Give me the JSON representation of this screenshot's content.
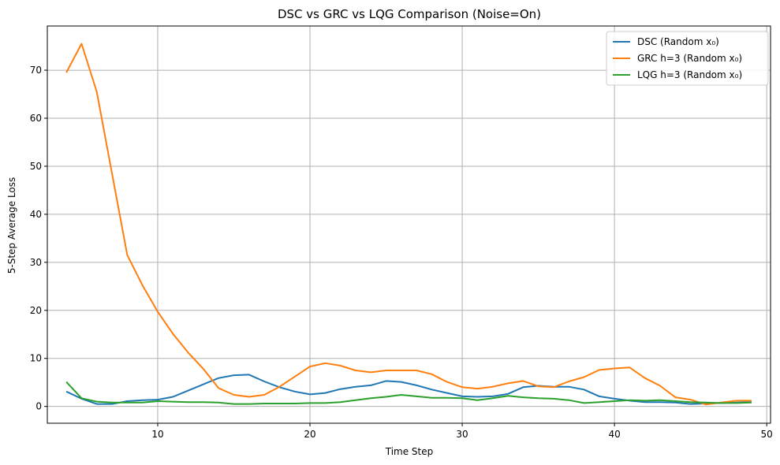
{
  "chart_data": {
    "type": "line",
    "title": "DSC vs GRC vs LQG Comparison (Noise=On)",
    "xlabel": "Time Step",
    "ylabel": "5-Step Average Loss",
    "xlim": [
      2.75,
      50.25
    ],
    "ylim": [
      -3.5,
      79.2
    ],
    "xticks": [
      10,
      20,
      30,
      40,
      50
    ],
    "yticks": [
      0,
      10,
      20,
      30,
      40,
      50,
      60,
      70
    ],
    "grid": true,
    "legend_position": "top-right",
    "x": [
      4,
      5,
      6,
      7,
      8,
      9,
      10,
      11,
      12,
      13,
      14,
      15,
      16,
      17,
      18,
      19,
      20,
      21,
      22,
      23,
      24,
      25,
      26,
      27,
      28,
      29,
      30,
      31,
      32,
      33,
      34,
      35,
      36,
      37,
      38,
      39,
      40,
      41,
      42,
      43,
      44,
      45,
      46,
      47,
      48,
      49
    ],
    "series": [
      {
        "name": "DSC (Random x₀)",
        "color": "#1f77b4",
        "values": [
          3.1,
          1.6,
          0.5,
          0.5,
          1.1,
          1.3,
          1.4,
          2.0,
          3.3,
          4.6,
          5.9,
          6.5,
          6.6,
          5.2,
          4.0,
          3.1,
          2.5,
          2.8,
          3.6,
          4.1,
          4.4,
          5.3,
          5.1,
          4.4,
          3.5,
          2.8,
          2.1,
          2.0,
          2.1,
          2.6,
          4.0,
          4.3,
          4.1,
          4.1,
          3.5,
          2.1,
          1.6,
          1.2,
          0.9,
          0.9,
          0.8,
          0.5,
          0.6,
          0.7,
          0.8,
          0.9
        ]
      },
      {
        "name": "GRC h=3 (Random x₀)",
        "color": "#ff7f0e",
        "values": [
          69.5,
          75.5,
          65.5,
          48.5,
          31.5,
          25.2,
          19.7,
          15.1,
          11.2,
          7.8,
          3.8,
          2.4,
          2.0,
          2.4,
          4.1,
          6.2,
          8.3,
          9.0,
          8.5,
          7.5,
          7.1,
          7.5,
          7.5,
          7.5,
          6.7,
          5.1,
          4.0,
          3.7,
          4.1,
          4.8,
          5.3,
          4.2,
          4.0,
          5.2,
          6.1,
          7.6,
          7.9,
          8.1,
          5.9,
          4.3,
          1.9,
          1.4,
          0.4,
          0.8,
          1.2,
          1.2
        ]
      },
      {
        "name": "LQG h=3 (Random x₀)",
        "color": "#2ca02c",
        "values": [
          5.1,
          1.7,
          1.0,
          0.8,
          0.8,
          0.8,
          1.1,
          1.0,
          0.9,
          0.9,
          0.8,
          0.5,
          0.5,
          0.6,
          0.6,
          0.6,
          0.7,
          0.7,
          0.9,
          1.3,
          1.7,
          2.0,
          2.4,
          2.1,
          1.8,
          1.8,
          1.7,
          1.3,
          1.7,
          2.2,
          1.9,
          1.7,
          1.6,
          1.3,
          0.7,
          0.9,
          1.1,
          1.3,
          1.2,
          1.3,
          1.1,
          0.9,
          0.8,
          0.7,
          0.7,
          0.8
        ]
      }
    ]
  }
}
